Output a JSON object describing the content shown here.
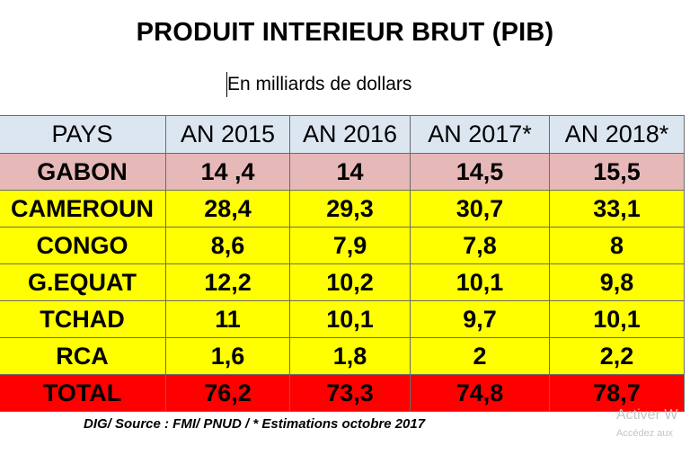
{
  "title": "PRODUIT INTERIEUR BRUT (PIB)",
  "subtitle": "En milliards de dollars",
  "table": {
    "headers": [
      "PAYS",
      "AN 2015",
      "AN 2016",
      "AN 2017*",
      "AN 2018*"
    ],
    "rows": [
      {
        "cells": [
          "GABON",
          "14 ,4",
          "14",
          "14,5",
          "15,5"
        ],
        "color": "#e6b8b8"
      },
      {
        "cells": [
          "CAMEROUN",
          "28,4",
          "29,3",
          "30,7",
          "33,1"
        ],
        "color": "#ffff00"
      },
      {
        "cells": [
          "CONGO",
          "8,6",
          "7,9",
          "7,8",
          "8"
        ],
        "color": "#ffff00"
      },
      {
        "cells": [
          "G.EQUAT",
          "12,2",
          "10,2",
          "10,1",
          "9,8"
        ],
        "color": "#ffff00"
      },
      {
        "cells": [
          "TCHAD",
          "11",
          "10,1",
          "9,7",
          "10,1"
        ],
        "color": "#ffff00"
      },
      {
        "cells": [
          "RCA",
          "1,6",
          "1,8",
          "2",
          "2,2"
        ],
        "color": "#ffff00"
      },
      {
        "cells": [
          "TOTAL",
          "76,2",
          "73,3",
          "74,8",
          "78,7"
        ],
        "color": "#ff0000"
      }
    ],
    "header_color": "#dce6f1"
  },
  "footnote": "DIG/ Source : FMI/ PNUD / * Estimations octobre 2017",
  "watermark": {
    "line1": "Activer W",
    "line2": "Accédez aux"
  }
}
